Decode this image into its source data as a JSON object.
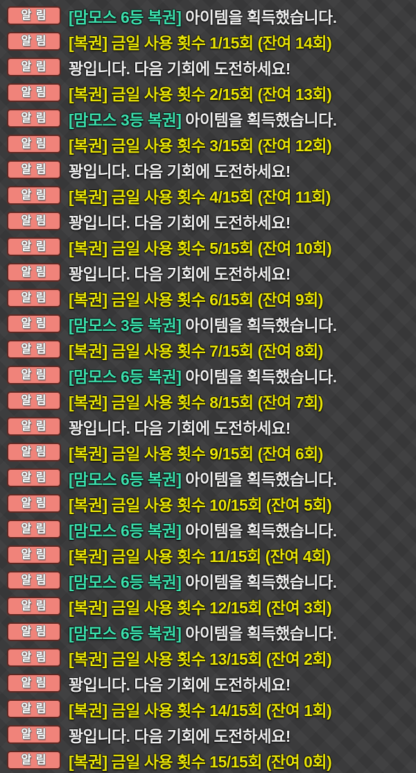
{
  "badge": {
    "label": "알 림"
  },
  "colors": {
    "background": "#3a3a3b",
    "badge_fill": "#f0837a",
    "badge_border": "#5c2823",
    "badge_text": "#ffffff",
    "usage_text": "#e8e406",
    "item_highlight": "#3be0ad",
    "plain_text": "#efefef"
  },
  "messages": [
    {
      "type": "item",
      "highlight": "[맘모스 6등 복권]",
      "text": " 아이템을 획득했습니다."
    },
    {
      "type": "usage",
      "text": "[복권] 금일 사용 횟수 1/15회 (잔여 14회)"
    },
    {
      "type": "miss",
      "text": "꽝입니다. 다음 기회에 도전하세요!"
    },
    {
      "type": "usage",
      "text": "[복권] 금일 사용 횟수 2/15회 (잔여 13회)"
    },
    {
      "type": "item",
      "highlight": "[맘모스 3등 복권]",
      "text": " 아이템을 획득했습니다."
    },
    {
      "type": "usage",
      "text": "[복권] 금일 사용 횟수 3/15회 (잔여 12회)"
    },
    {
      "type": "miss",
      "text": "꽝입니다. 다음 기회에 도전하세요!"
    },
    {
      "type": "usage",
      "text": "[복권] 금일 사용 횟수 4/15회 (잔여 11회)"
    },
    {
      "type": "miss",
      "text": "꽝입니다. 다음 기회에 도전하세요!"
    },
    {
      "type": "usage",
      "text": "[복권] 금일 사용 횟수 5/15회 (잔여 10회)"
    },
    {
      "type": "miss",
      "text": "꽝입니다. 다음 기회에 도전하세요!"
    },
    {
      "type": "usage",
      "text": "[복권] 금일 사용 횟수 6/15회 (잔여 9회)"
    },
    {
      "type": "item",
      "highlight": "[맘모스 3등 복권]",
      "text": " 아이템을 획득했습니다."
    },
    {
      "type": "usage",
      "text": "[복권] 금일 사용 횟수 7/15회 (잔여 8회)"
    },
    {
      "type": "item",
      "highlight": "[맘모스 6등 복권]",
      "text": " 아이템을 획득했습니다."
    },
    {
      "type": "usage",
      "text": "[복권] 금일 사용 횟수 8/15회 (잔여 7회)"
    },
    {
      "type": "miss",
      "text": "꽝입니다. 다음 기회에 도전하세요!"
    },
    {
      "type": "usage",
      "text": "[복권] 금일 사용 횟수 9/15회 (잔여 6회)"
    },
    {
      "type": "item",
      "highlight": "[맘모스 6등 복권]",
      "text": " 아이템을 획득했습니다."
    },
    {
      "type": "usage",
      "text": "[복권] 금일 사용 횟수 10/15회 (잔여 5회)"
    },
    {
      "type": "item",
      "highlight": "[맘모스 6등 복권]",
      "text": " 아이템을 획득했습니다."
    },
    {
      "type": "usage",
      "text": "[복권] 금일 사용 횟수 11/15회 (잔여 4회)"
    },
    {
      "type": "item",
      "highlight": "[맘모스 6등 복권]",
      "text": " 아이템을 획득했습니다."
    },
    {
      "type": "usage",
      "text": "[복권] 금일 사용 횟수 12/15회 (잔여 3회)"
    },
    {
      "type": "item",
      "highlight": "[맘모스 6등 복권]",
      "text": " 아이템을 획득했습니다."
    },
    {
      "type": "usage",
      "text": "[복권] 금일 사용 횟수 13/15회 (잔여 2회)"
    },
    {
      "type": "miss",
      "text": "꽝입니다. 다음 기회에 도전하세요!"
    },
    {
      "type": "usage",
      "text": "[복권] 금일 사용 횟수 14/15회 (잔여 1회)"
    },
    {
      "type": "miss",
      "text": "꽝입니다. 다음 기회에 도전하세요!"
    },
    {
      "type": "usage",
      "text": "[복권] 금일 사용 횟수 15/15회 (잔여 0회)"
    }
  ]
}
